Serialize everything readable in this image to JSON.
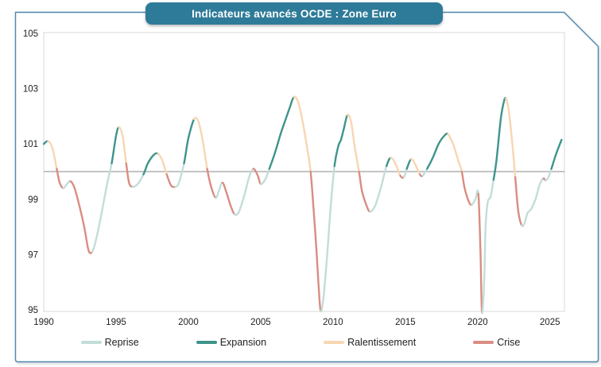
{
  "title": {
    "text": "Indicateurs avancés OCDE : Zone Euro"
  },
  "colors": {
    "badge_background": "#2e7b99",
    "panel_border": "#4d86ad",
    "plot_frame": "#d9d9d9",
    "reference_line": "#8a8a8a",
    "tick_text": "#222222",
    "reprise": "#c3ddd9",
    "expansion": "#3e948b",
    "ralentissement": "#f8d6b2",
    "crise": "#d98d82"
  },
  "legend": {
    "items": [
      {
        "id": "reprise",
        "label": "Reprise",
        "color": "#c3ddd9"
      },
      {
        "id": "expansion",
        "label": "Expansion",
        "color": "#3e948b"
      },
      {
        "id": "ralentissement",
        "label": "Ralentissement",
        "color": "#f8d6b2"
      },
      {
        "id": "crise",
        "label": "Crise",
        "color": "#d98d82"
      }
    ]
  },
  "chart_data": {
    "type": "line",
    "title": "Indicateurs avancés OCDE : Zone Euro",
    "xlabel": "",
    "ylabel": "",
    "xlim": [
      1990,
      2026
    ],
    "ylim": [
      95,
      105
    ],
    "x_ticks": [
      1990,
      1995,
      2000,
      2005,
      2010,
      2015,
      2020,
      2025
    ],
    "y_ticks": [
      105,
      103,
      101,
      99,
      97,
      95
    ],
    "reference_line": 100,
    "grid": false,
    "legend_position": "bottom",
    "phase_rule": "above 100 rising = expansion; above 100 falling = ralentissement; below 100 falling = crise; below 100 rising = reprise",
    "series": [
      {
        "name": "Indicateur avancé OCDE Zone Euro",
        "points": [
          [
            1990.0,
            101.0
          ],
          [
            1990.3,
            101.1
          ],
          [
            1990.6,
            100.85
          ],
          [
            1990.9,
            100.1
          ],
          [
            1991.1,
            99.6
          ],
          [
            1991.35,
            99.4
          ],
          [
            1991.6,
            99.55
          ],
          [
            1991.85,
            99.65
          ],
          [
            1992.1,
            99.45
          ],
          [
            1992.4,
            98.9
          ],
          [
            1992.8,
            98.0
          ],
          [
            1993.1,
            97.15
          ],
          [
            1993.35,
            97.1
          ],
          [
            1993.6,
            97.5
          ],
          [
            1994.0,
            98.5
          ],
          [
            1994.4,
            99.6
          ],
          [
            1994.7,
            100.3
          ],
          [
            1995.0,
            101.3
          ],
          [
            1995.2,
            101.6
          ],
          [
            1995.45,
            101.3
          ],
          [
            1995.7,
            100.3
          ],
          [
            1995.9,
            99.6
          ],
          [
            1996.15,
            99.45
          ],
          [
            1996.5,
            99.55
          ],
          [
            1996.9,
            99.9
          ],
          [
            1997.2,
            100.3
          ],
          [
            1997.6,
            100.6
          ],
          [
            1997.9,
            100.65
          ],
          [
            1998.2,
            100.4
          ],
          [
            1998.5,
            99.9
          ],
          [
            1998.8,
            99.5
          ],
          [
            1999.1,
            99.45
          ],
          [
            1999.35,
            99.6
          ],
          [
            1999.7,
            100.3
          ],
          [
            2000.0,
            101.2
          ],
          [
            2000.4,
            101.9
          ],
          [
            2000.7,
            101.8
          ],
          [
            2001.0,
            101.1
          ],
          [
            2001.3,
            100.1
          ],
          [
            2001.6,
            99.4
          ],
          [
            2001.9,
            99.05
          ],
          [
            2002.1,
            99.3
          ],
          [
            2002.35,
            99.6
          ],
          [
            2002.6,
            99.3
          ],
          [
            2002.9,
            98.8
          ],
          [
            2003.2,
            98.45
          ],
          [
            2003.5,
            98.55
          ],
          [
            2003.9,
            99.2
          ],
          [
            2004.2,
            99.8
          ],
          [
            2004.5,
            100.1
          ],
          [
            2004.8,
            99.85
          ],
          [
            2005.0,
            99.55
          ],
          [
            2005.3,
            99.7
          ],
          [
            2005.6,
            100.1
          ],
          [
            2006.0,
            100.7
          ],
          [
            2006.4,
            101.4
          ],
          [
            2006.7,
            101.85
          ],
          [
            2007.0,
            102.3
          ],
          [
            2007.3,
            102.7
          ],
          [
            2007.6,
            102.5
          ],
          [
            2007.9,
            101.8
          ],
          [
            2008.2,
            100.9
          ],
          [
            2008.45,
            100.0
          ],
          [
            2008.65,
            98.7
          ],
          [
            2008.85,
            97.2
          ],
          [
            2009.0,
            95.9
          ],
          [
            2009.15,
            94.95
          ],
          [
            2009.35,
            95.5
          ],
          [
            2009.6,
            97.0
          ],
          [
            2009.85,
            98.8
          ],
          [
            2010.1,
            100.2
          ],
          [
            2010.35,
            100.9
          ],
          [
            2010.55,
            101.15
          ],
          [
            2010.75,
            101.55
          ],
          [
            2011.0,
            102.05
          ],
          [
            2011.25,
            101.8
          ],
          [
            2011.5,
            100.9
          ],
          [
            2011.8,
            100.0
          ],
          [
            2012.0,
            99.3
          ],
          [
            2012.3,
            98.8
          ],
          [
            2012.55,
            98.55
          ],
          [
            2012.9,
            98.75
          ],
          [
            2013.3,
            99.4
          ],
          [
            2013.7,
            100.2
          ],
          [
            2014.0,
            100.5
          ],
          [
            2014.35,
            100.25
          ],
          [
            2014.65,
            99.85
          ],
          [
            2014.9,
            99.8
          ],
          [
            2015.1,
            100.1
          ],
          [
            2015.4,
            100.45
          ],
          [
            2015.7,
            100.25
          ],
          [
            2016.0,
            99.9
          ],
          [
            2016.2,
            99.85
          ],
          [
            2016.5,
            100.1
          ],
          [
            2016.9,
            100.5
          ],
          [
            2017.3,
            101.0
          ],
          [
            2017.7,
            101.3
          ],
          [
            2017.95,
            101.35
          ],
          [
            2018.3,
            101.0
          ],
          [
            2018.6,
            100.5
          ],
          [
            2018.9,
            100.0
          ],
          [
            2019.1,
            99.4
          ],
          [
            2019.4,
            98.9
          ],
          [
            2019.6,
            98.8
          ],
          [
            2019.85,
            99.0
          ],
          [
            2020.05,
            99.2
          ],
          [
            2020.2,
            97.0
          ],
          [
            2020.3,
            94.9
          ],
          [
            2020.45,
            96.0
          ],
          [
            2020.55,
            98.0
          ],
          [
            2020.7,
            98.9
          ],
          [
            2020.9,
            99.1
          ],
          [
            2021.1,
            99.7
          ],
          [
            2021.3,
            100.4
          ],
          [
            2021.6,
            101.9
          ],
          [
            2021.8,
            102.5
          ],
          [
            2021.95,
            102.65
          ],
          [
            2022.15,
            102.2
          ],
          [
            2022.4,
            101.0
          ],
          [
            2022.6,
            99.8
          ],
          [
            2022.8,
            98.6
          ],
          [
            2023.05,
            98.05
          ],
          [
            2023.25,
            98.15
          ],
          [
            2023.45,
            98.5
          ],
          [
            2023.7,
            98.65
          ],
          [
            2024.0,
            99.0
          ],
          [
            2024.3,
            99.55
          ],
          [
            2024.55,
            99.75
          ],
          [
            2024.7,
            99.68
          ],
          [
            2024.9,
            99.8
          ],
          [
            2025.1,
            100.1
          ],
          [
            2025.4,
            100.6
          ],
          [
            2025.8,
            101.15
          ]
        ]
      }
    ]
  }
}
